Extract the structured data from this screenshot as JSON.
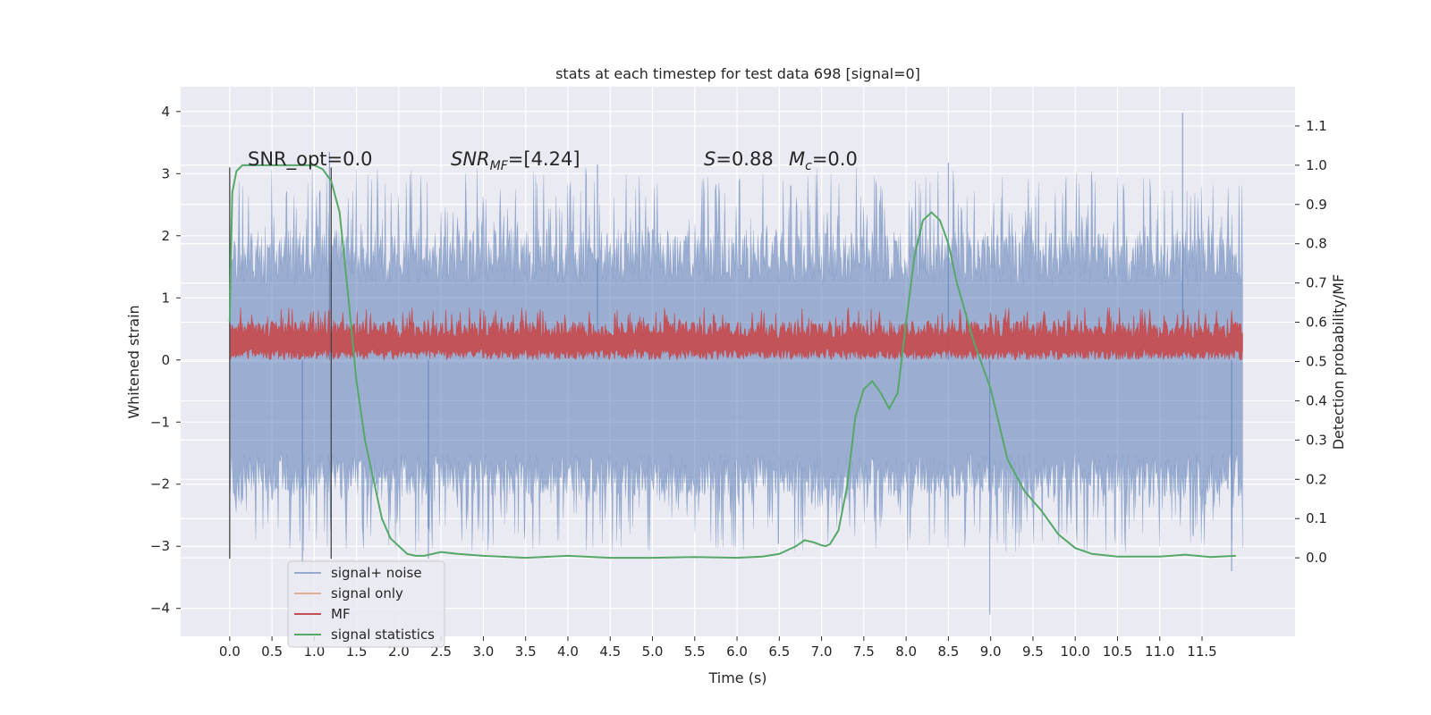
{
  "chart_data": {
    "type": "line",
    "title": "stats at each timestep for test data 698 [signal=0]",
    "xlabel": "Time (s)",
    "ylabel": "Whitened strain",
    "ylabel_right": "Detection probability/MF",
    "xlim": [
      -0.58,
      12.6
    ],
    "ylim": [
      -4.45,
      4.4
    ],
    "ylim_right": [
      -0.2,
      1.2
    ],
    "x_ticks": [
      "0.0",
      "0.5",
      "1.0",
      "1.5",
      "2.0",
      "2.5",
      "3.0",
      "3.5",
      "4.0",
      "4.5",
      "5.0",
      "5.5",
      "6.0",
      "6.5",
      "7.0",
      "7.5",
      "8.0",
      "8.5",
      "9.0",
      "9.5",
      "10.0",
      "10.5",
      "11.0",
      "11.5"
    ],
    "y_ticks": [
      "−4",
      "−3",
      "−2",
      "−1",
      "0",
      "1",
      "2",
      "3",
      "4"
    ],
    "y_ticks_right": [
      "0.0",
      "0.1",
      "0.2",
      "0.3",
      "0.4",
      "0.5",
      "0.6",
      "0.7",
      "0.8",
      "0.9",
      "1.0",
      "1.1"
    ],
    "grid": true,
    "legend_position": "lower-left",
    "annotations": {
      "snr_opt": "SNR_opt=0.0",
      "snr_mf_var": "SNR",
      "snr_mf_sub": "MF",
      "snr_mf_val": "=[4.24]",
      "s_var": "S",
      "s_val": "=0.88",
      "mc_var": "M",
      "mc_sub": "c",
      "mc_val": "=0.0"
    },
    "vertical_markers": [
      {
        "x": 0.0,
        "ymin": -3.2,
        "ymax": 3.1
      },
      {
        "x": 1.2,
        "ymin": -3.2,
        "ymax": 3.1
      }
    ],
    "series": [
      {
        "name": "signal+ noise",
        "color": "#4c72b0",
        "axis": "left",
        "x_range": [
          0.0,
          11.98
        ],
        "band_upper": 1.2,
        "band_lower": -1.5,
        "peak_max": 3.98,
        "peak_min": -4.1
      },
      {
        "name": "signal only",
        "color": "#dd8452",
        "axis": "left",
        "values": []
      },
      {
        "name": "MF",
        "color": "#c44e52",
        "axis": "left",
        "x_range": [
          0.0,
          11.98
        ],
        "band_upper": 0.6,
        "band_lower": 0.0
      },
      {
        "name": "signal statistics",
        "color": "#55a868",
        "axis": "right",
        "x": [
          0.0,
          0.03,
          0.08,
          0.15,
          0.3,
          0.5,
          0.8,
          1.0,
          1.1,
          1.2,
          1.3,
          1.4,
          1.5,
          1.6,
          1.7,
          1.8,
          1.9,
          2.0,
          2.1,
          2.2,
          2.3,
          2.5,
          2.7,
          3.0,
          3.5,
          4.0,
          4.5,
          5.0,
          5.5,
          6.0,
          6.3,
          6.5,
          6.6,
          6.7,
          6.8,
          6.9,
          7.0,
          7.05,
          7.1,
          7.2,
          7.3,
          7.4,
          7.5,
          7.6,
          7.7,
          7.8,
          7.9,
          8.0,
          8.1,
          8.2,
          8.3,
          8.4,
          8.5,
          8.6,
          8.8,
          9.0,
          9.2,
          9.4,
          9.6,
          9.8,
          10.0,
          10.2,
          10.5,
          11.0,
          11.3,
          11.6,
          11.9
        ],
        "values": [
          0.6,
          0.93,
          0.985,
          1.0,
          1.0,
          1.0,
          1.0,
          1.0,
          0.99,
          0.96,
          0.88,
          0.67,
          0.45,
          0.3,
          0.2,
          0.1,
          0.05,
          0.03,
          0.01,
          0.005,
          0.005,
          0.015,
          0.01,
          0.005,
          0.0,
          0.005,
          0.0,
          0.0,
          0.002,
          0.0,
          0.003,
          0.01,
          0.02,
          0.03,
          0.045,
          0.04,
          0.032,
          0.03,
          0.035,
          0.07,
          0.18,
          0.36,
          0.43,
          0.45,
          0.42,
          0.38,
          0.42,
          0.6,
          0.77,
          0.86,
          0.88,
          0.86,
          0.8,
          0.7,
          0.55,
          0.43,
          0.25,
          0.17,
          0.12,
          0.06,
          0.025,
          0.01,
          0.003,
          0.003,
          0.008,
          0.002,
          0.005
        ]
      }
    ]
  }
}
